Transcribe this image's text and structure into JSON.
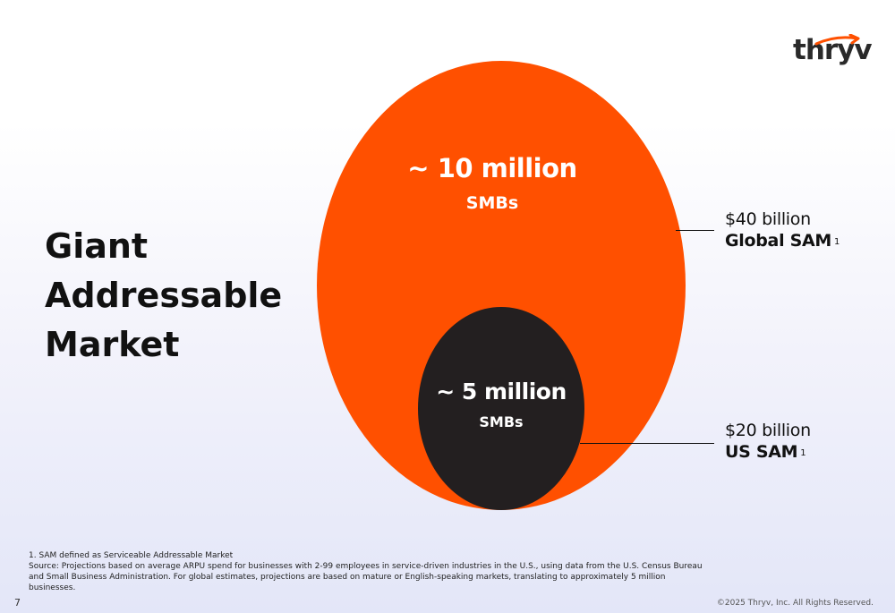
{
  "brand": {
    "logo_text": "thryv",
    "accent": "#ff5000",
    "dark": "#231f20"
  },
  "headline": {
    "lines": [
      "Giant",
      "Addressable",
      "Market"
    ]
  },
  "outer_circle": {
    "count": "~ 10 million",
    "unit": "SMBs"
  },
  "inner_circle": {
    "count": "~ 5 million",
    "unit": "SMBs"
  },
  "callouts": {
    "global": {
      "value": "$40 billion",
      "label": "Global SAM",
      "ref": "1"
    },
    "us": {
      "value": "$20 billion",
      "label": "US SAM",
      "ref": "1"
    }
  },
  "footnotes": {
    "note1": "1. SAM defined as Serviceable Addressable Market",
    "source": "Source: Projections based on average ARPU spend for businesses with 2-99 employees in service-driven industries in the U.S., using data from the U.S. Census Bureau and Small Business Administration. For global estimates, projections are based on mature or English-speaking markets, translating to approximately 5 million businesses."
  },
  "footer": {
    "page_number": "7",
    "copyright": "©2025 Thryv, Inc. All Rights Reserved."
  }
}
